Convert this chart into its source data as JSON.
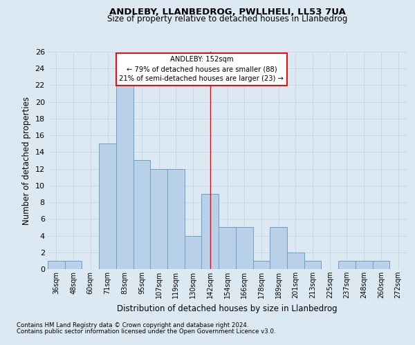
{
  "title1": "ANDLEBY, LLANBEDROG, PWLLHELI, LL53 7UA",
  "title2": "Size of property relative to detached houses in Llanbedrog",
  "xlabel": "Distribution of detached houses by size in Llanbedrog",
  "ylabel": "Number of detached properties",
  "categories": [
    "36sqm",
    "48sqm",
    "60sqm",
    "71sqm",
    "83sqm",
    "95sqm",
    "107sqm",
    "119sqm",
    "130sqm",
    "142sqm",
    "154sqm",
    "166sqm",
    "178sqm",
    "189sqm",
    "201sqm",
    "213sqm",
    "225sqm",
    "237sqm",
    "248sqm",
    "260sqm",
    "272sqm"
  ],
  "values": [
    1,
    1,
    0,
    15,
    22,
    13,
    12,
    12,
    4,
    9,
    5,
    5,
    1,
    5,
    2,
    1,
    0,
    1,
    1,
    1,
    0
  ],
  "bar_color": "#b8d0e8",
  "bar_edge_color": "#6ca0c8",
  "red_line_index": 9.5,
  "annotation_title": "ANDLEBY: 152sqm",
  "annotation_line1": "← 79% of detached houses are smaller (88)",
  "annotation_line2": "21% of semi-detached houses are larger (23) →",
  "ylim": [
    0,
    26
  ],
  "yticks": [
    0,
    2,
    4,
    6,
    8,
    10,
    12,
    14,
    16,
    18,
    20,
    22,
    24,
    26
  ],
  "grid_color": "#c8d8e8",
  "background_color": "#dce8f2",
  "footnote1": "Contains HM Land Registry data © Crown copyright and database right 2024.",
  "footnote2": "Contains public sector information licensed under the Open Government Licence v3.0."
}
